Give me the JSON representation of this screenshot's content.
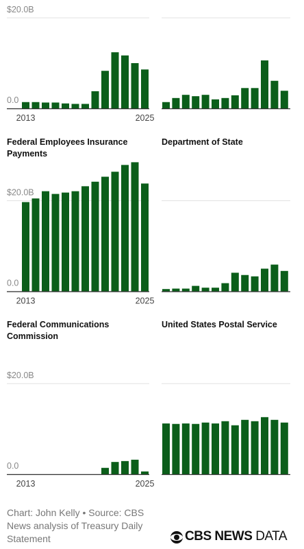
{
  "chart_data": [
    {
      "type": "bar",
      "color": "#0b5e1a",
      "categories": [
        "2013",
        null,
        null,
        null,
        null,
        null,
        null,
        null,
        null,
        null,
        null,
        null,
        "2025"
      ],
      "values": [
        1.4,
        1.4,
        1.3,
        1.3,
        1.1,
        1.0,
        1.0,
        3.8,
        8.3,
        12.4,
        11.7,
        10.0,
        8.6
      ],
      "ylim": [
        0,
        30
      ],
      "yticks": [
        {
          "value": 0,
          "label": "0.0"
        },
        {
          "value": 20,
          "label": "$20.0B"
        }
      ]
    },
    {
      "type": "bar",
      "color": "#0b5e1a",
      "categories": [
        null,
        null,
        null,
        null,
        null,
        null,
        null,
        null,
        null,
        null,
        null,
        null,
        null
      ],
      "values": [
        1.4,
        2.3,
        3.0,
        2.7,
        3.0,
        2.0,
        2.3,
        2.9,
        4.5,
        4.5,
        10.6,
        6.1,
        3.9
      ],
      "ylim": [
        0,
        30
      ],
      "gridlines": [
        20
      ]
    },
    {
      "type": "bar",
      "title": "Federal Employees Insurance Payments",
      "color": "#0b5e1a",
      "categories": [
        "2013",
        null,
        null,
        null,
        null,
        null,
        null,
        null,
        null,
        null,
        null,
        null,
        "2025"
      ],
      "values": [
        19.7,
        20.5,
        22.1,
        21.5,
        21.8,
        22.1,
        23.2,
        24.2,
        25.3,
        26.4,
        27.9,
        28.5,
        23.8
      ],
      "ylim": [
        0,
        30
      ],
      "yticks": [
        {
          "value": 0,
          "label": "0.0"
        },
        {
          "value": 20,
          "label": "$20.0B"
        }
      ]
    },
    {
      "type": "bar",
      "title": "Department of State",
      "color": "#0b5e1a",
      "categories": [
        null,
        null,
        null,
        null,
        null,
        null,
        null,
        null,
        null,
        null,
        null,
        null,
        null
      ],
      "values": [
        0.5,
        0.6,
        0.6,
        1.2,
        0.8,
        0.8,
        1.8,
        4.1,
        3.6,
        3.3,
        5.0,
        5.9,
        4.5
      ],
      "ylim": [
        0,
        30
      ],
      "gridlines": [
        20
      ]
    },
    {
      "type": "bar",
      "title": "Federal Communications Commission",
      "color": "#0b5e1a",
      "categories": [
        "2013",
        null,
        null,
        null,
        null,
        null,
        null,
        null,
        null,
        null,
        null,
        null,
        "2025"
      ],
      "values": [
        0,
        0,
        0,
        0,
        0,
        0,
        0,
        0,
        1.4,
        2.7,
        2.9,
        3.2,
        0.6
      ],
      "ylim": [
        0,
        30
      ],
      "yticks": [
        {
          "value": 0,
          "label": "0.0"
        },
        {
          "value": 20,
          "label": "$20.0B"
        }
      ]
    },
    {
      "type": "bar",
      "title": "United States Postal Service",
      "color": "#0b5e1a",
      "categories": [
        null,
        null,
        null,
        null,
        null,
        null,
        null,
        null,
        null,
        null,
        null,
        null,
        null
      ],
      "values": [
        11.2,
        11.1,
        11.2,
        11.1,
        11.4,
        11.2,
        11.7,
        10.8,
        12.0,
        11.7,
        12.6,
        12.0,
        11.4
      ],
      "ylim": [
        0,
        30
      ],
      "gridlines": [
        20
      ]
    }
  ],
  "footer": {
    "source": "Chart: John Kelly • Source: CBS News analysis of Treasury Daily Statement",
    "logo_main": "CBS NEWS",
    "logo_sub": "DATA"
  }
}
